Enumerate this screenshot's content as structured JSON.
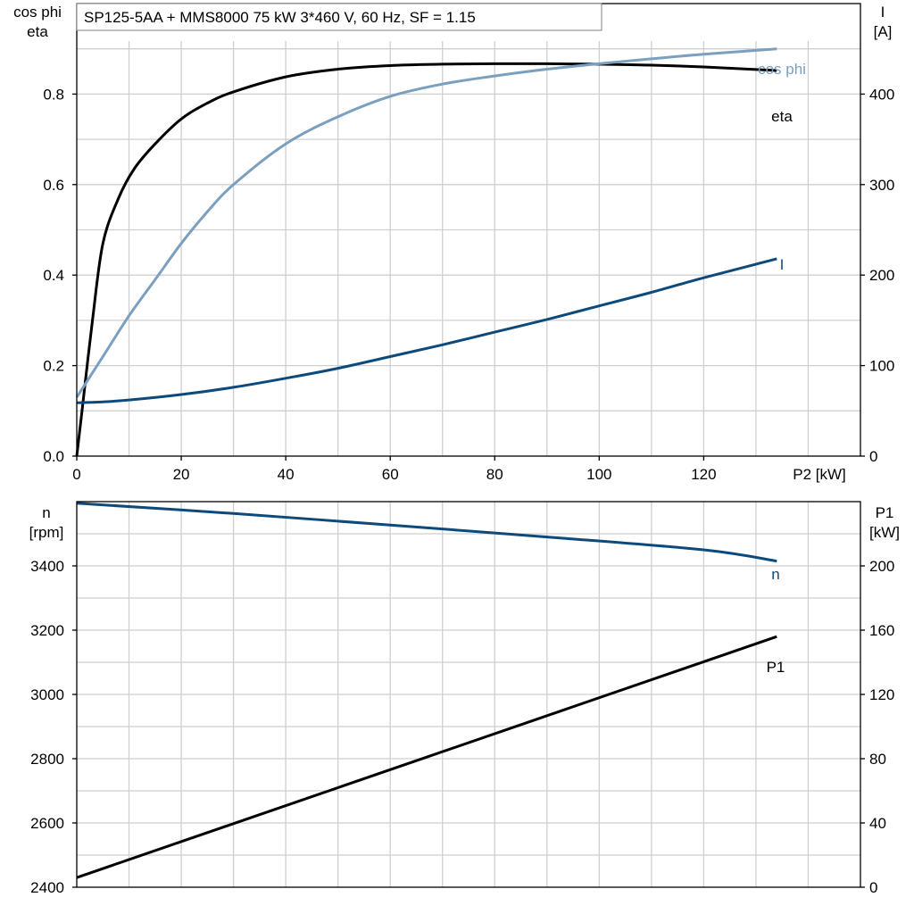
{
  "title": "SP125-5AA + MMS8000   75 kW   3*460 V, 60 Hz, SF = 1.15",
  "colors": {
    "eta": "#000000",
    "cos_phi": "#7a9fbf",
    "I": "#0d4a7c",
    "n": "#0d4a7c",
    "P1": "#000000"
  },
  "chart_data": [
    {
      "type": "line",
      "name": "top",
      "grid": true,
      "x_label": "P2 [kW]",
      "x_ticks": [
        "0",
        "20",
        "40",
        "60",
        "80",
        "100",
        "120"
      ],
      "xlim": [
        0,
        150
      ],
      "y_left_label": [
        "cos phi",
        "eta"
      ],
      "y_left_ticks": [
        "0.0",
        "0.2",
        "0.4",
        "0.6",
        "0.8"
      ],
      "y_left_lim": [
        0,
        1.0
      ],
      "y_right_label": [
        "I",
        "[A]"
      ],
      "y_right_ticks": [
        "0",
        "100",
        "200",
        "300",
        "400"
      ],
      "y_right_lim": [
        0,
        500
      ],
      "series": [
        {
          "name": "eta",
          "axis": "left",
          "color": "#000000",
          "x": [
            0,
            1,
            3,
            5,
            8,
            11,
            15,
            20,
            25,
            30,
            40,
            50,
            60,
            70,
            80,
            90,
            100,
            110,
            120,
            134
          ],
          "y": [
            0.0,
            0.1,
            0.3,
            0.47,
            0.57,
            0.635,
            0.69,
            0.745,
            0.78,
            0.805,
            0.838,
            0.855,
            0.863,
            0.866,
            0.867,
            0.867,
            0.866,
            0.864,
            0.86,
            0.852
          ]
        },
        {
          "name": "cos phi",
          "axis": "left",
          "color": "#7a9fbf",
          "x": [
            0,
            5,
            10,
            15,
            20,
            25,
            30,
            40,
            50,
            60,
            70,
            80,
            90,
            100,
            110,
            120,
            134
          ],
          "y": [
            0.13,
            0.22,
            0.31,
            0.39,
            0.47,
            0.54,
            0.6,
            0.69,
            0.75,
            0.795,
            0.822,
            0.84,
            0.855,
            0.867,
            0.878,
            0.888,
            0.9
          ]
        },
        {
          "name": "I",
          "axis": "right",
          "color": "#0d4a7c",
          "x": [
            0,
            5,
            10,
            20,
            30,
            40,
            50,
            60,
            70,
            80,
            90,
            100,
            110,
            120,
            134
          ],
          "y": [
            59,
            60,
            62,
            68,
            76,
            86,
            97,
            110,
            123,
            137,
            151,
            166,
            181,
            197,
            218
          ]
        }
      ]
    },
    {
      "type": "line",
      "name": "bottom",
      "grid": true,
      "xlim": [
        0,
        150
      ],
      "y_left_label": [
        "n",
        "[rpm]"
      ],
      "y_left_ticks": [
        "2400",
        "2600",
        "2800",
        "3000",
        "3200",
        "3400"
      ],
      "y_left_lim": [
        2400,
        3600
      ],
      "y_right_label": [
        "P1",
        "[kW]"
      ],
      "y_right_ticks": [
        "0",
        "40",
        "80",
        "120",
        "160",
        "200"
      ],
      "y_right_lim": [
        0,
        240
      ],
      "series": [
        {
          "name": "n",
          "axis": "left",
          "color": "#0d4a7c",
          "x": [
            0,
            30,
            60,
            90,
            120,
            134
          ],
          "y": [
            3595,
            3563,
            3527,
            3490,
            3450,
            3415
          ]
        },
        {
          "name": "P1",
          "axis": "right",
          "color": "#000000",
          "x": [
            0,
            134
          ],
          "y": [
            6,
            156
          ]
        }
      ]
    }
  ]
}
